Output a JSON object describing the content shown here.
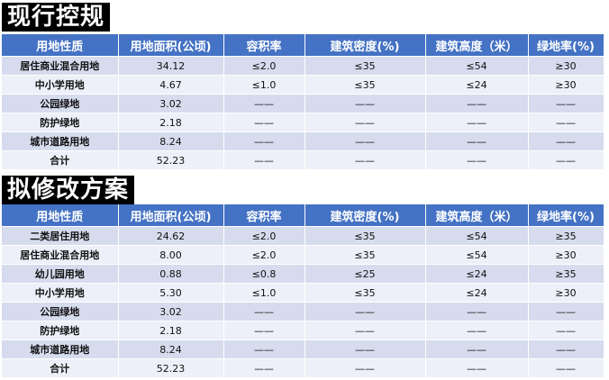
{
  "current": {
    "title": "现行控规",
    "headers": [
      "用地性质",
      "用地面积(公顷)",
      "容积率",
      "建筑密度(%)",
      "建筑高度（米）",
      "绿地率(%)"
    ],
    "rows": [
      [
        "居住商业混合用地",
        "34.12",
        "≤2.0",
        "≤35",
        "≤54",
        "≥30"
      ],
      [
        "中小学用地",
        "4.67",
        "≤1.0",
        "≤35",
        "≤24",
        "≥30"
      ],
      [
        "公园绿地",
        "3.02",
        "——",
        "——",
        "——",
        "——"
      ],
      [
        "防护绿地",
        "2.18",
        "——",
        "——",
        "——",
        "——"
      ],
      [
        "城市道路用地",
        "8.24",
        "——",
        "——",
        "——",
        "——"
      ],
      [
        "合计",
        "52.23",
        "——",
        "——",
        "——",
        "——"
      ]
    ]
  },
  "proposed": {
    "title": "拟修改方案",
    "headers": [
      "用地性质",
      "用地面积(公顷)",
      "容积率",
      "建筑密度(%)",
      "建筑高度（米）",
      "绿地率(%)"
    ],
    "rows": [
      [
        "二类居住用地",
        "24.62",
        "≤2.0",
        "≤35",
        "≤54",
        "≥35"
      ],
      [
        "居住商业混合用地",
        "8.00",
        "≤2.0",
        "≤35",
        "≤54",
        "≥30"
      ],
      [
        "幼儿园用地",
        "0.88",
        "≤0.8",
        "≤25",
        "≤24",
        "≥35"
      ],
      [
        "中小学用地",
        "5.30",
        "≤1.0",
        "≤35",
        "≤24",
        "≥30"
      ],
      [
        "公园绿地",
        "3.02",
        "——",
        "——",
        "——",
        "——"
      ],
      [
        "防护绿地",
        "2.18",
        "——",
        "——",
        "——",
        "——"
      ],
      [
        "城市道路用地",
        "8.24",
        "——",
        "——",
        "——",
        "——"
      ],
      [
        "合计",
        "52.23",
        "——",
        "——",
        "——",
        "——"
      ]
    ]
  },
  "colors": {
    "header": "#4472c4",
    "row_dark": "#d6dcee",
    "row_light": "#edf0f8"
  }
}
